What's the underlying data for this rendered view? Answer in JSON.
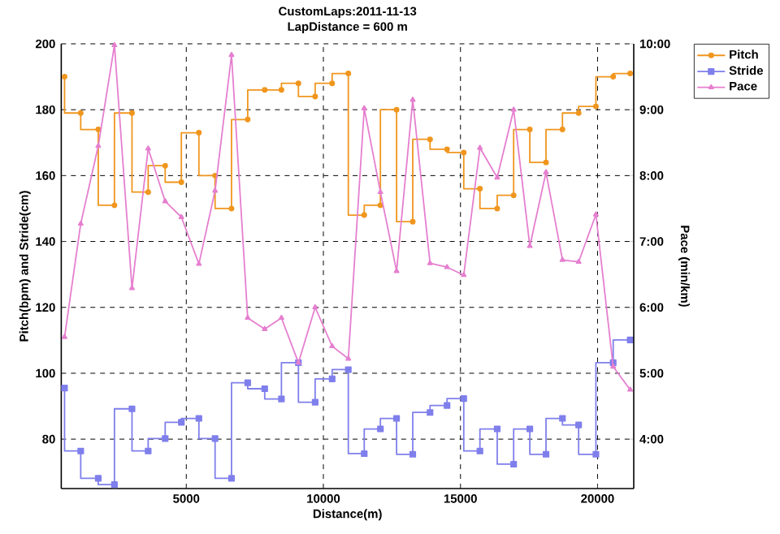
{
  "chart_data": {
    "type": "step",
    "title": "CustomLaps:2011-11-13",
    "subtitle": "LapDistance = 600 m",
    "xlabel": "Distance(m)",
    "ylabel": "Pitch(bpm) and Stride(cm)",
    "y2label": "Pace (min/km)",
    "x": [
      560,
      1150,
      1790,
      2380,
      3020,
      3610,
      4230,
      4820,
      5460,
      6050,
      6650,
      7240,
      7860,
      8470,
      9090,
      9700,
      10320,
      10910,
      11490,
      12080,
      12670,
      13260,
      13890,
      14510,
      15120,
      15710,
      16340,
      16940,
      17530,
      18120,
      18720,
      19310,
      19940,
      20570,
      21190
    ],
    "series": [
      {
        "name": "Pitch",
        "color": "#f0961e",
        "marker": "circle",
        "values": [
          190,
          179,
          174,
          151,
          179,
          155,
          163,
          158,
          173,
          160,
          150,
          177,
          186,
          186,
          188,
          184,
          188,
          191,
          148,
          151,
          180,
          146,
          171,
          168,
          167,
          156,
          150,
          154,
          174,
          164,
          174,
          179,
          181,
          190,
          191
        ]
      },
      {
        "name": "Stride",
        "color": "#7f7fec",
        "marker": "square",
        "values": [
          95.5,
          76.4,
          68.1,
          66.2,
          89.2,
          76.4,
          80.2,
          85.1,
          86.3,
          80.2,
          68.1,
          97.1,
          95.3,
          92.2,
          103.2,
          91.2,
          98.3,
          101.1,
          75.6,
          83.1,
          86.3,
          75.4,
          88.1,
          90.2,
          92.3,
          76.4,
          83.1,
          72.4,
          83.1,
          75.4,
          86.3,
          84.3,
          75.4,
          103.2,
          110.1
        ]
      },
      {
        "name": "Pace",
        "type": "line",
        "axis": "y2",
        "color": "#e57fcf",
        "marker": "triangle",
        "values": [
          5.55,
          7.27,
          8.45,
          9.98,
          6.29,
          8.41,
          7.61,
          7.37,
          6.66,
          7.77,
          9.83,
          5.84,
          5.67,
          5.84,
          5.16,
          6.0,
          5.41,
          5.22,
          9.02,
          7.75,
          6.55,
          9.15,
          6.67,
          6.61,
          6.49,
          8.42,
          7.97,
          9.0,
          6.93,
          8.05,
          6.72,
          6.69,
          7.41,
          5.1,
          4.75
        ]
      }
    ],
    "xlim": [
      440,
      21320
    ],
    "xticks": [
      5000,
      10000,
      15000,
      20000
    ],
    "ylim": [
      65,
      200
    ],
    "yticks": [
      80,
      100,
      120,
      140,
      160,
      180,
      200
    ],
    "y2lim": [
      3.25,
      10
    ],
    "y2ticks": [
      {
        "value": 4,
        "label": "4:00"
      },
      {
        "value": 5,
        "label": "5:00"
      },
      {
        "value": 6,
        "label": "6:00"
      },
      {
        "value": 7,
        "label": "7:00"
      },
      {
        "value": 8,
        "label": "8:00"
      },
      {
        "value": 9,
        "label": "9:00"
      },
      {
        "value": 10,
        "label": "10:00"
      }
    ],
    "grid": true,
    "legend": "top right"
  }
}
